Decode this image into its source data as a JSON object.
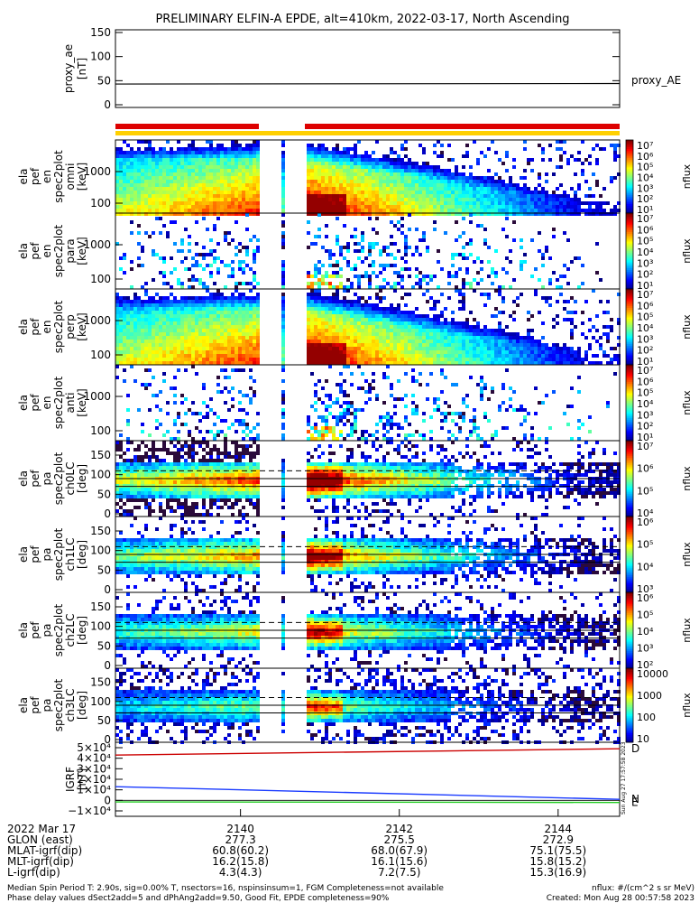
{
  "title": "PRELIMINARY ELFIN-A EPDE, alt=410km, 2022-03-17, North Ascending",
  "colors": {
    "red_bar": "#dd0000",
    "yellow_bar": "#ffd000",
    "bx": "#cc0000",
    "by": "#ff8a00",
    "bz_blue": "#1a3bff",
    "green": "#22cc22"
  },
  "chart_data": [
    {
      "type": "line",
      "id": "proxy_ae",
      "ylabel_lines": [
        "proxy_ae",
        "[nT]"
      ],
      "ylim": [
        0,
        150
      ],
      "yticks": [
        "0",
        "50",
        "100",
        "150"
      ],
      "series": [
        {
          "name": "proxy_AE",
          "values": [
            43,
            44
          ]
        }
      ]
    },
    {
      "type": "heatmap",
      "id": "spec_omni",
      "ylabel_lines": [
        "ela",
        "pef",
        "en",
        "spec2plot",
        "omni",
        "[keV]"
      ],
      "yticks": [
        "100",
        "1000"
      ],
      "cbar_ticks": [
        "10¹",
        "10²",
        "10³",
        "10⁴",
        "10⁵",
        "10⁶",
        "10⁷"
      ],
      "cbar_label": "nflux",
      "cbar_range": [
        1,
        7
      ],
      "energy_decay": true
    },
    {
      "type": "heatmap",
      "id": "spec_para",
      "ylabel_lines": [
        "ela",
        "pef",
        "en",
        "spec2plot",
        "para",
        "[keV]"
      ],
      "yticks": [
        "100",
        "1000"
      ],
      "cbar_ticks": [
        "10¹",
        "10²",
        "10³",
        "10⁴",
        "10⁵",
        "10⁶",
        "10⁷"
      ],
      "cbar_label": "nflux",
      "cbar_range": [
        1,
        7
      ],
      "sparse": true
    },
    {
      "type": "heatmap",
      "id": "spec_perp",
      "ylabel_lines": [
        "ela",
        "pef",
        "en",
        "spec2plot",
        "perp",
        "[keV]"
      ],
      "yticks": [
        "100",
        "1000"
      ],
      "cbar_ticks": [
        "10¹",
        "10²",
        "10³",
        "10⁴",
        "10⁵",
        "10⁶",
        "10⁷"
      ],
      "cbar_label": "nflux",
      "cbar_range": [
        1,
        7
      ],
      "energy_decay": true
    },
    {
      "type": "heatmap",
      "id": "spec_anti",
      "ylabel_lines": [
        "ela",
        "pef",
        "en",
        "spec2plot",
        "anti",
        "[keV]"
      ],
      "yticks": [
        "100",
        "1000"
      ],
      "cbar_ticks": [
        "10¹",
        "10²",
        "10³",
        "10⁴",
        "10⁵",
        "10⁶",
        "10⁷"
      ],
      "cbar_label": "nflux",
      "cbar_range": [
        1,
        7
      ],
      "sparse": true
    },
    {
      "type": "heatmap",
      "id": "pa_ch0",
      "ylabel_lines": [
        "ela",
        "pef",
        "pa",
        "spec2plot",
        "ch0LC",
        "[deg]"
      ],
      "yticks": [
        "0",
        "50",
        "100",
        "150"
      ],
      "ylim": [
        0,
        180
      ],
      "cbar_ticks": [
        "10⁴",
        "10⁵",
        "10⁶",
        "10⁷"
      ],
      "cbar_label": "nflux"
    },
    {
      "type": "heatmap",
      "id": "pa_ch1",
      "ylabel_lines": [
        "ela",
        "pef",
        "pa",
        "spec2plot",
        "ch1LC",
        "[deg]"
      ],
      "yticks": [
        "0",
        "50",
        "100",
        "150"
      ],
      "ylim": [
        0,
        180
      ],
      "cbar_ticks": [
        "10³",
        "10⁴",
        "10⁵",
        "10⁶"
      ],
      "cbar_label": "nflux"
    },
    {
      "type": "heatmap",
      "id": "pa_ch2",
      "ylabel_lines": [
        "ela",
        "pef",
        "pa",
        "spec2plot",
        "ch2LC",
        "[deg]"
      ],
      "yticks": [
        "0",
        "50",
        "100",
        "150"
      ],
      "ylim": [
        0,
        180
      ],
      "cbar_ticks": [
        "10²",
        "10³",
        "10⁴",
        "10⁵",
        "10⁶"
      ],
      "cbar_label": "nflux"
    },
    {
      "type": "heatmap",
      "id": "pa_ch3",
      "ylabel_lines": [
        "ela",
        "pef",
        "pa",
        "spec2plot",
        "ch3LC",
        "[deg]"
      ],
      "yticks": [
        "0",
        "50",
        "100",
        "150"
      ],
      "ylim": [
        0,
        180
      ],
      "cbar_ticks": [
        "10",
        "100",
        "1000",
        "10000"
      ],
      "cbar_label": "nflux"
    },
    {
      "type": "line",
      "id": "igrf",
      "ylabel_lines": [
        "IGRF",
        "[nT]"
      ],
      "ylim": [
        -10000,
        50000
      ],
      "yticks": [
        "−1×10⁴",
        "0",
        "1×10⁴",
        "2×10⁴",
        "3×10⁴",
        "4×10⁴",
        "5×10⁴"
      ],
      "series": [
        {
          "name": "D",
          "values": [
            43000,
            49000
          ]
        },
        {
          "name": "N",
          "values": [
            13000,
            1000
          ]
        },
        {
          "name": "E",
          "values": [
            -1500,
            -2000
          ]
        }
      ]
    }
  ],
  "xaxis": {
    "rows": [
      {
        "label": "2022 Mar 17",
        "values": [
          "2140",
          "2142",
          "2144"
        ]
      },
      {
        "label": "GLON (east)",
        "values": [
          "277.3",
          "275.5",
          "272.9"
        ]
      },
      {
        "label": "MLAT-igrf(dip)",
        "values": [
          "60.8(60.2)",
          "68.0(67.9)",
          "75.1(75.5)"
        ]
      },
      {
        "label": "MLT-igrf(dip)",
        "values": [
          "16.2(15.8)",
          "16.1(15.6)",
          "15.8(15.2)"
        ]
      },
      {
        "label": "L-igrf(dip)",
        "values": [
          "4.3(4.3)",
          "7.2(7.5)",
          "15.3(16.9)"
        ]
      }
    ]
  },
  "footer": {
    "line1_left": "Median Spin Period T: 2.90s, sig=0.00% T, nsectors=16, nspinsinsum=1, FGM Completeness=not available",
    "line2_left": "Phase delay values dSect2add=5 and dPhAng2add=9.50, Good Fit, EPDE completeness=90%",
    "line1_right": "nflux: #/(cm^2 s sr MeV)",
    "line2_right": "Created: Mon Aug 28 00:57:58 2023"
  },
  "side_stamp": "Sun Aug 27 17:57:58 2023"
}
